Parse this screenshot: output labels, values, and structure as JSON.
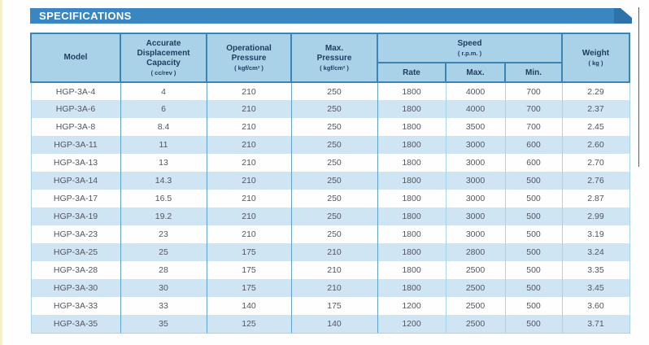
{
  "page": {
    "section_title": "SPECIFICATIONS"
  },
  "colors": {
    "banner_blue": "#3a86c0",
    "banner_tip_dark_blue": "#2d72a9",
    "header_cell_blue": "#a9d2e9",
    "row_alt_blue": "#cfe5f4",
    "header_border_blue": "#3c83b6",
    "grid_line_blue": "#5fa3d1",
    "header_text_navy": "#1e3c5f",
    "body_text_gray": "#54565e",
    "left_edge_strip_yellow": "#f4f1c6"
  },
  "table": {
    "headers": {
      "model": "Model",
      "capacity_title": "Accurate\nDisplacement\nCapacity",
      "capacity_unit": "( cc/rev )",
      "op_pressure_title": "Operational\nPressure",
      "op_pressure_unit": "( kgf/cm² )",
      "max_pressure_title": "Max.\nPressure",
      "max_pressure_unit": "( kgf/cm² )",
      "speed_title": "Speed",
      "speed_unit": "( r.p.m. )",
      "rate": "Rate",
      "max": "Max.",
      "min": "Min.",
      "weight_title": "Weight",
      "weight_unit": "( kg )"
    },
    "rows": [
      [
        "HGP-3A-4",
        "4",
        "210",
        "250",
        "1800",
        "4000",
        "700",
        "2.29"
      ],
      [
        "HGP-3A-6",
        "6",
        "210",
        "250",
        "1800",
        "4000",
        "700",
        "2.37"
      ],
      [
        "HGP-3A-8",
        "8.4",
        "210",
        "250",
        "1800",
        "3500",
        "700",
        "2.45"
      ],
      [
        "HGP-3A-11",
        "11",
        "210",
        "250",
        "1800",
        "3000",
        "600",
        "2.60"
      ],
      [
        "HGP-3A-13",
        "13",
        "210",
        "250",
        "1800",
        "3000",
        "600",
        "2.70"
      ],
      [
        "HGP-3A-14",
        "14.3",
        "210",
        "250",
        "1800",
        "3000",
        "500",
        "2.76"
      ],
      [
        "HGP-3A-17",
        "16.5",
        "210",
        "250",
        "1800",
        "3000",
        "500",
        "2.87"
      ],
      [
        "HGP-3A-19",
        "19.2",
        "210",
        "250",
        "1800",
        "3000",
        "500",
        "2.99"
      ],
      [
        "HGP-3A-23",
        "23",
        "210",
        "250",
        "1800",
        "3000",
        "500",
        "3.19"
      ],
      [
        "HGP-3A-25",
        "25",
        "175",
        "210",
        "1800",
        "2800",
        "500",
        "3.24"
      ],
      [
        "HGP-3A-28",
        "28",
        "175",
        "210",
        "1800",
        "2500",
        "500",
        "3.35"
      ],
      [
        "HGP-3A-30",
        "30",
        "175",
        "210",
        "1800",
        "2500",
        "500",
        "3.45"
      ],
      [
        "HGP-3A-33",
        "33",
        "140",
        "175",
        "1200",
        "2500",
        "500",
        "3.60"
      ],
      [
        "HGP-3A-35",
        "35",
        "125",
        "140",
        "1200",
        "2500",
        "500",
        "3.71"
      ]
    ]
  }
}
